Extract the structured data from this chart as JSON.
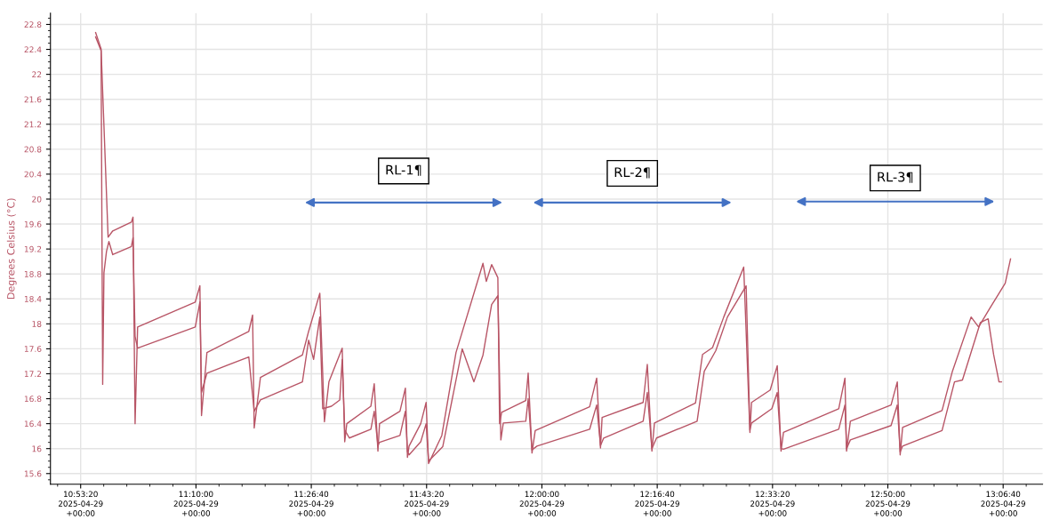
{
  "chart_data": {
    "type": "line",
    "ylabel": "Degrees Celsius (°C)",
    "xlim": [
      "2025-04-29T10:48:58",
      "2025-04-29T13:12:22"
    ],
    "ylim": [
      15.43,
      22.98
    ],
    "xticks": [
      {
        "value": "2025-04-29T10:53:20",
        "label": "10:53:20\n2025-04-29\n+00:00"
      },
      {
        "value": "2025-04-29T11:10:00",
        "label": "11:10:00\n2025-04-29\n+00:00"
      },
      {
        "value": "2025-04-29T11:26:40",
        "label": "11:26:40\n2025-04-29\n+00:00"
      },
      {
        "value": "2025-04-29T11:43:20",
        "label": "11:43:20\n2025-04-29\n+00:00"
      },
      {
        "value": "2025-04-29T12:00:00",
        "label": "12:00:00\n2025-04-29\n+00:00"
      },
      {
        "value": "2025-04-29T12:16:40",
        "label": "12:16:40\n2025-04-29\n+00:00"
      },
      {
        "value": "2025-04-29T12:33:20",
        "label": "12:33:20\n2025-04-29\n+00:00"
      },
      {
        "value": "2025-04-29T12:50:00",
        "label": "12:50:00\n2025-04-29\n+00:00"
      },
      {
        "value": "2025-04-29T13:06:40",
        "label": "13:06:40\n2025-04-29\n+00:00"
      }
    ],
    "yticks": [
      15.6,
      16,
      16.4,
      16.8,
      17.2,
      17.6,
      18,
      18.4,
      18.8,
      19.2,
      19.6,
      20,
      20.4,
      20.8,
      21.2,
      21.6,
      22,
      22.4,
      22.8
    ],
    "grid": true,
    "marker": "none",
    "line_style": "solid",
    "annotations": [
      "RL-1¶",
      "RL-2¶",
      "RL-3¶"
    ],
    "series": [
      {
        "color": "#b85566",
        "x": [
          "2025-04-29T10:55:30",
          "2025-04-29T10:56:17",
          "2025-04-29T10:57:18",
          "2025-04-29T10:57:58",
          "2025-04-29T11:00:40",
          "2025-04-29T11:00:54",
          "2025-04-29T11:01:12",
          "2025-04-29T11:01:34",
          "2025-04-29T11:09:54",
          "2025-04-29T11:10:34",
          "2025-04-29T11:10:48",
          "2025-04-29T11:11:35",
          "2025-04-29T11:17:38",
          "2025-04-29T11:18:11",
          "2025-04-29T11:18:25",
          "2025-04-29T11:19:19",
          "2025-04-29T11:25:23",
          "2025-04-29T11:26:17",
          "2025-04-29T11:27:54",
          "2025-04-29T11:28:34",
          "2025-04-29T11:29:13",
          "2025-04-29T11:31:08",
          "2025-04-29T11:31:30",
          "2025-04-29T11:31:48",
          "2025-04-29T11:35:17",
          "2025-04-29T11:35:46",
          "2025-04-29T11:36:18",
          "2025-04-29T11:36:32",
          "2025-04-29T11:39:29",
          "2025-04-29T11:40:16",
          "2025-04-29T11:40:34",
          "2025-04-29T11:40:48",
          "2025-04-29T11:42:29",
          "2025-04-29T11:43:16",
          "2025-04-29T11:43:37",
          "2025-04-29T11:45:32",
          "2025-04-29T11:47:35",
          "2025-04-29T11:51:29",
          "2025-04-29T11:51:58",
          "2025-04-29T11:52:44",
          "2025-04-29T11:53:38",
          "2025-04-29T11:53:53",
          "2025-04-29T11:54:11",
          "2025-04-29T11:57:40",
          "2025-04-29T11:58:01",
          "2025-04-29T11:58:34",
          "2025-04-29T11:59:02",
          "2025-04-29T12:06:54",
          "2025-04-29T12:07:55",
          "2025-04-29T12:08:28",
          "2025-04-29T12:08:42",
          "2025-04-29T12:14:38",
          "2025-04-29T12:15:14",
          "2025-04-29T12:15:54",
          "2025-04-29T12:16:16",
          "2025-04-29T12:22:12",
          "2025-04-29T12:23:13",
          "2025-04-29T12:24:40",
          "2025-04-29T12:26:17",
          "2025-04-29T12:29:10",
          "2025-04-29T12:30:04",
          "2025-04-29T12:30:18",
          "2025-04-29T12:33:00",
          "2025-04-29T12:34:01",
          "2025-04-29T12:34:34",
          "2025-04-29T12:34:55",
          "2025-04-29T12:42:54",
          "2025-04-29T12:43:48",
          "2025-04-29T12:44:02",
          "2025-04-29T12:44:35",
          "2025-04-29T12:50:28",
          "2025-04-29T12:51:22",
          "2025-04-29T12:51:47",
          "2025-04-29T12:52:08",
          "2025-04-29T12:57:50",
          "2025-04-29T12:59:20",
          "2025-04-29T13:02:02",
          "2025-04-29T13:03:07",
          "2025-04-29T13:04:44",
          "2025-04-29T13:06:58",
          "2025-04-29T13:07:44"
        ],
        "values": [
          22.67,
          22.41,
          19.39,
          19.49,
          19.63,
          19.71,
          16.4,
          17.95,
          18.35,
          18.61,
          16.53,
          17.54,
          17.88,
          18.14,
          16.33,
          17.14,
          17.5,
          17.88,
          18.49,
          16.43,
          17.07,
          17.61,
          16.11,
          16.4,
          16.68,
          17.04,
          15.96,
          16.4,
          16.6,
          16.97,
          15.86,
          16.04,
          16.4,
          16.74,
          15.76,
          16.21,
          17.54,
          18.97,
          18.68,
          18.95,
          18.74,
          16.4,
          16.58,
          16.77,
          17.21,
          15.93,
          16.29,
          16.67,
          17.13,
          16.01,
          16.5,
          16.74,
          17.35,
          15.96,
          16.41,
          16.73,
          17.51,
          17.62,
          18.11,
          18.91,
          16.26,
          16.74,
          16.94,
          17.33,
          15.96,
          16.26,
          16.64,
          17.13,
          15.96,
          16.44,
          16.7,
          17.07,
          15.9,
          16.34,
          16.61,
          17.24,
          18.11,
          17.95,
          18.25,
          18.65,
          19.04
        ]
      },
      {
        "color": "#b85566",
        "x": [
          "2025-04-29T10:55:30",
          "2025-04-29T10:56:17",
          "2025-04-29T10:56:31",
          "2025-04-29T10:56:42",
          "2025-04-29T10:57:04",
          "2025-04-29T10:57:25",
          "2025-04-29T10:57:58",
          "2025-04-29T11:00:40",
          "2025-04-29T11:00:54",
          "2025-04-29T11:01:12",
          "2025-04-29T11:01:34",
          "2025-04-29T11:09:54",
          "2025-04-29T11:10:34",
          "2025-04-29T11:10:48",
          "2025-04-29T11:11:35",
          "2025-04-29T11:17:38",
          "2025-04-29T11:18:25",
          "2025-04-29T11:19:19",
          "2025-04-29T11:25:23",
          "2025-04-29T11:26:17",
          "2025-04-29T11:27:00",
          "2025-04-29T11:27:54",
          "2025-04-29T11:28:19",
          "2025-04-29T11:29:35",
          "2025-04-29T11:30:47",
          "2025-04-29T11:31:08",
          "2025-04-29T11:31:30",
          "2025-04-29T11:32:10",
          "2025-04-29T11:35:17",
          "2025-04-29T11:35:46",
          "2025-04-29T11:36:18",
          "2025-04-29T11:36:32",
          "2025-04-29T11:39:29",
          "2025-04-29T11:40:16",
          "2025-04-29T11:40:34",
          "2025-04-29T11:40:48",
          "2025-04-29T11:42:29",
          "2025-04-29T11:43:16",
          "2025-04-29T11:43:37",
          "2025-04-29T11:45:40",
          "2025-04-29T11:48:29",
          "2025-04-29T11:50:10",
          "2025-04-29T11:51:29",
          "2025-04-29T11:52:44",
          "2025-04-29T11:53:38",
          "2025-04-29T11:54:04",
          "2025-04-29T11:54:25",
          "2025-04-29T11:57:40",
          "2025-04-29T11:58:01",
          "2025-04-29T11:58:34",
          "2025-04-29T11:59:17",
          "2025-04-29T12:06:54",
          "2025-04-29T12:07:55",
          "2025-04-29T12:08:28",
          "2025-04-29T12:08:56",
          "2025-04-29T12:14:38",
          "2025-04-29T12:15:14",
          "2025-04-29T12:15:54",
          "2025-04-29T12:16:34",
          "2025-04-29T12:22:26",
          "2025-04-29T12:23:28",
          "2025-04-29T12:25:08",
          "2025-04-29T12:26:49",
          "2025-04-29T12:29:31",
          "2025-04-29T12:30:04",
          "2025-04-29T12:30:18",
          "2025-04-29T12:33:14",
          "2025-04-29T12:34:01",
          "2025-04-29T12:34:34",
          "2025-04-29T12:34:55",
          "2025-04-29T12:42:54",
          "2025-04-29T12:43:48",
          "2025-04-29T12:44:02",
          "2025-04-29T12:44:35",
          "2025-04-29T12:50:28",
          "2025-04-29T12:51:22",
          "2025-04-29T12:51:47",
          "2025-04-29T12:52:08",
          "2025-04-29T12:57:50",
          "2025-04-29T12:59:38",
          "2025-04-29T13:00:47",
          "2025-04-29T13:03:22",
          "2025-04-29T13:04:30",
          "2025-04-29T13:05:17",
          "2025-04-29T13:06:04",
          "2025-04-29T13:06:25"
        ],
        "values": [
          22.6,
          22.38,
          17.03,
          18.82,
          19.16,
          19.32,
          19.11,
          19.24,
          19.38,
          17.8,
          17.61,
          17.95,
          18.35,
          16.9,
          17.21,
          17.47,
          16.6,
          16.78,
          17.07,
          17.74,
          17.43,
          18.11,
          16.64,
          16.68,
          16.78,
          17.43,
          16.3,
          16.17,
          16.31,
          16.6,
          16.05,
          16.1,
          16.21,
          16.6,
          15.95,
          15.9,
          16.11,
          16.4,
          15.8,
          16.03,
          17.6,
          17.07,
          17.5,
          18.31,
          18.45,
          16.14,
          16.41,
          16.44,
          16.8,
          15.98,
          16.04,
          16.31,
          16.7,
          16.05,
          16.17,
          16.44,
          16.9,
          16.0,
          16.17,
          16.44,
          17.24,
          17.57,
          18.11,
          18.61,
          16.3,
          16.41,
          16.64,
          16.9,
          16.0,
          15.99,
          16.31,
          16.7,
          16.0,
          16.14,
          16.37,
          16.7,
          15.95,
          16.04,
          16.29,
          17.07,
          17.1,
          18.02,
          18.08,
          17.51,
          17.07,
          17.07
        ]
      }
    ]
  }
}
